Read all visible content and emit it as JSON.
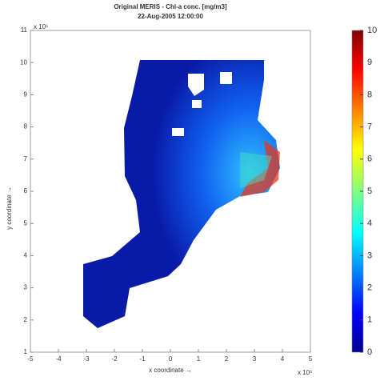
{
  "chart_data": {
    "type": "map",
    "title": "Original MERIS - Chl-a conc. [mg/m3]",
    "subtitle": "22-Aug-2005 12:00:00",
    "x_label": "x coordinate →",
    "y_label": "y coordinate →",
    "x_exponent": "x 10⁵",
    "y_exponent": "x 10⁵",
    "xlim": [
      -5,
      5
    ],
    "xticks": [
      -5,
      -4,
      -3,
      -2,
      -1,
      0,
      1,
      2,
      3,
      4,
      5
    ],
    "ylim": [
      1,
      11
    ],
    "yticks": [
      1,
      2,
      3,
      4,
      5,
      6,
      7,
      8,
      9,
      10,
      11
    ],
    "clim": [
      0,
      10
    ],
    "cticks": [
      0,
      1,
      2,
      3,
      4,
      5,
      6,
      7,
      8,
      9,
      10
    ],
    "colormap": "jet"
  }
}
